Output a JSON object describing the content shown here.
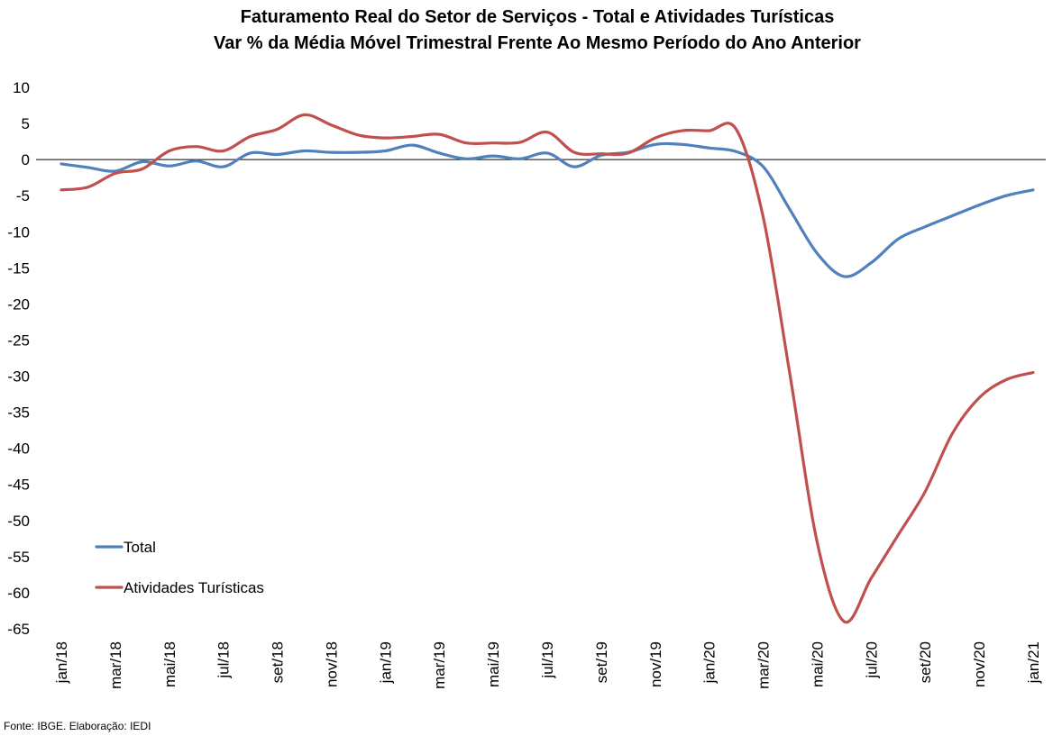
{
  "chart_data": {
    "type": "line",
    "title": "Faturamento Real do Setor de Serviços - Total e Atividades Turísticas",
    "subtitle": "Var % da Média Móvel Trimestral Frente Ao Mesmo Período do Ano Anterior",
    "xlabel": "",
    "ylabel": "",
    "ylim": [
      -65,
      10
    ],
    "yticks": [
      10,
      5,
      0,
      -5,
      -10,
      -15,
      -20,
      -25,
      -30,
      -35,
      -40,
      -45,
      -50,
      -55,
      -60,
      -65
    ],
    "x": [
      "jan/18",
      "fev/18",
      "mar/18",
      "abr/18",
      "mai/18",
      "jun/18",
      "jul/18",
      "ago/18",
      "set/18",
      "out/18",
      "nov/18",
      "dez/18",
      "jan/19",
      "fev/19",
      "mar/19",
      "abr/19",
      "mai/19",
      "jun/19",
      "jul/19",
      "ago/19",
      "set/19",
      "out/19",
      "nov/19",
      "dez/19",
      "jan/20",
      "fev/20",
      "mar/20",
      "abr/20",
      "mai/20",
      "jun/20",
      "jul/20",
      "ago/20",
      "set/20",
      "out/20",
      "nov/20",
      "dez/20",
      "jan/21"
    ],
    "xtick_labels": [
      "jan/18",
      "mar/18",
      "mai/18",
      "jul/18",
      "set/18",
      "nov/18",
      "jan/19",
      "mar/19",
      "mai/19",
      "jul/19",
      "set/19",
      "nov/19",
      "jan/20",
      "mar/20",
      "mai/20",
      "jul/20",
      "set/20",
      "nov/20",
      "jan/21"
    ],
    "series": [
      {
        "name": "Total",
        "color": "#4F81BD",
        "values": [
          -0.6,
          -1.1,
          -1.6,
          -0.3,
          -0.9,
          -0.2,
          -1.0,
          0.9,
          0.7,
          1.2,
          1.0,
          1.0,
          1.2,
          2.0,
          0.9,
          0.1,
          0.5,
          0.1,
          0.9,
          -1.0,
          0.6,
          1.0,
          2.1,
          2.1,
          1.6,
          1.1,
          -1.0,
          -7.0,
          -13.0,
          -16.2,
          -14.3,
          -11.0,
          -9.3,
          -7.8,
          -6.3,
          -5.0,
          -4.2
        ]
      },
      {
        "name": "Atividades Turísticas",
        "color": "#C0504D",
        "values": [
          -4.2,
          -3.8,
          -1.9,
          -1.3,
          1.2,
          1.8,
          1.2,
          3.2,
          4.2,
          6.2,
          4.8,
          3.4,
          3.0,
          3.2,
          3.5,
          2.3,
          2.3,
          2.4,
          3.8,
          1.0,
          0.8,
          0.9,
          3.0,
          4.0,
          4.0,
          4.2,
          -8.0,
          -30.0,
          -53.0,
          -64.0,
          -58.0,
          -52.0,
          -46.0,
          -38.0,
          -33.0,
          -30.5,
          -29.5
        ]
      }
    ],
    "legend_position": "bottom-left",
    "grid": false
  },
  "footer": {
    "source": "Fonte: IBGE. Elaboração: IEDI"
  }
}
